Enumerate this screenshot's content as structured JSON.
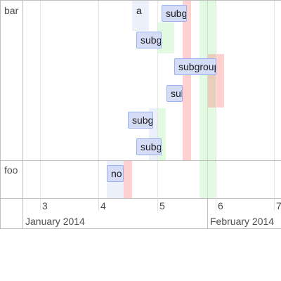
{
  "groups": [
    {
      "label": "bar"
    },
    {
      "label": "foo"
    }
  ],
  "axis": {
    "minor_labels": [
      "3",
      "4",
      "5",
      "6",
      "7"
    ],
    "major_labels": [
      "January 2014",
      "February 2014"
    ]
  },
  "items": {
    "a": "a",
    "subgroup_1": "subgroup",
    "subgroup_2": "subgroup",
    "subgroup_3": "subgroup",
    "subgroup_4": "subgroup",
    "subgroup_5": "subgroup",
    "subgroup_6": "subgroup",
    "no": "no"
  },
  "colors": {
    "item_background": "#d5ddf6",
    "item_border": "#97b0f8",
    "background_blue": "#d5ddf6",
    "background_green": "#aaf0aa",
    "background_red": "#ff7878",
    "grid": "#bfbfbf"
  }
}
